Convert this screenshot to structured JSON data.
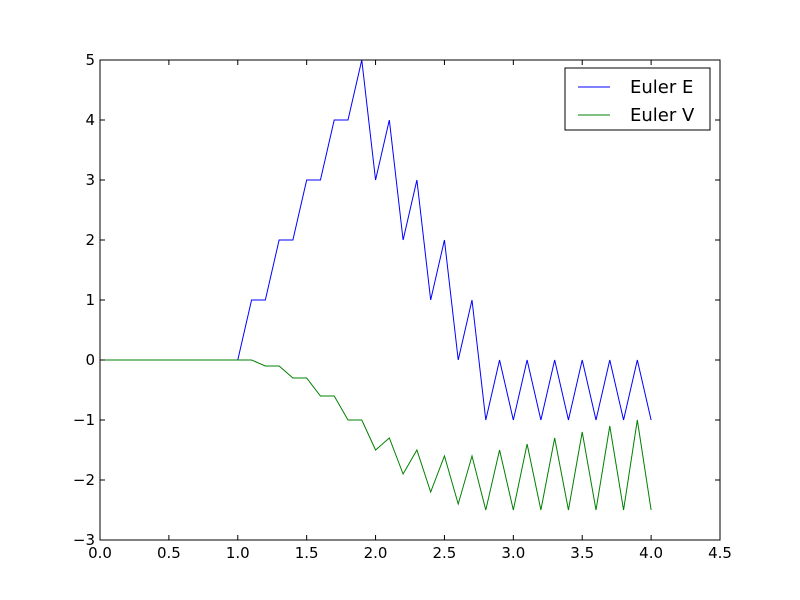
{
  "chart_data": {
    "type": "line",
    "title": "",
    "xlabel": "",
    "ylabel": "",
    "xlim": [
      0,
      4.5
    ],
    "ylim": [
      -3,
      5
    ],
    "xticks": [
      0,
      0.5,
      1,
      1.5,
      2,
      2.5,
      3,
      3.5,
      4,
      4.5
    ],
    "xtick_labels": [
      "0.0",
      "0.5",
      "1.0",
      "1.5",
      "2.0",
      "2.5",
      "3.0",
      "3.5",
      "4.0",
      "4.5"
    ],
    "yticks": [
      -3,
      -2,
      -1,
      0,
      1,
      2,
      3,
      4,
      5
    ],
    "ytick_labels": [
      "−3",
      "−2",
      "−1",
      "0",
      "1",
      "2",
      "3",
      "4",
      "5"
    ],
    "grid": false,
    "legend_position": "upper right",
    "x": [
      0.0,
      0.1,
      0.2,
      0.3,
      0.4,
      0.5,
      0.6,
      0.7,
      0.8,
      0.9,
      1.0,
      1.1,
      1.2,
      1.3,
      1.4,
      1.5,
      1.6,
      1.7,
      1.8,
      1.9,
      2.0,
      2.1,
      2.2,
      2.3,
      2.4,
      2.5,
      2.6,
      2.7,
      2.8,
      2.9,
      3.0,
      3.1,
      3.2,
      3.3,
      3.4,
      3.5,
      3.6,
      3.7,
      3.8,
      3.9,
      4.0
    ],
    "series": [
      {
        "name": "Euler E",
        "color": "#0000ff",
        "values": [
          0,
          0,
          0,
          0,
          0,
          0,
          0,
          0,
          0,
          0,
          0,
          1,
          1,
          2,
          2,
          3,
          3,
          4,
          4,
          5,
          3,
          4,
          2,
          3,
          1,
          2,
          0,
          1,
          -1,
          0,
          -1,
          0,
          -1,
          0,
          -1,
          0,
          -1,
          0,
          -1,
          0,
          -1
        ]
      },
      {
        "name": "Euler V",
        "color": "#008000",
        "values": [
          0,
          0,
          0,
          0,
          0,
          0,
          0,
          0,
          0,
          0,
          0,
          0,
          -0.1,
          -0.1,
          -0.3,
          -0.3,
          -0.6,
          -0.6,
          -1.0,
          -1.0,
          -1.5,
          -1.3,
          -1.9,
          -1.5,
          -2.2,
          -1.6,
          -2.4,
          -1.6,
          -2.5,
          -1.5,
          -2.5,
          -1.4,
          -2.5,
          -1.3,
          -2.5,
          -1.2,
          -2.5,
          -1.1,
          -2.5,
          -1.0,
          -2.5
        ]
      }
    ]
  }
}
